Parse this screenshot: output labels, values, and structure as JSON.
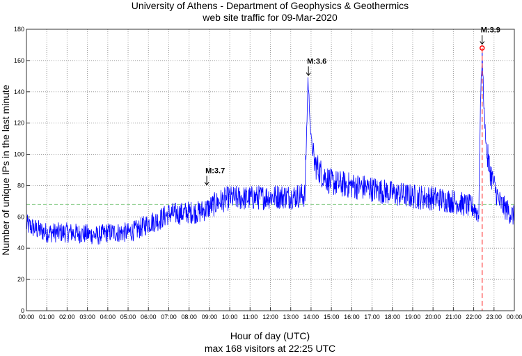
{
  "chart_data": {
    "type": "line",
    "title": "University of Athens - Department of Geophysics & Geothermics",
    "subtitle": "web site traffic for 09-Mar-2020",
    "xlabel": "Hour of day (UTC)",
    "footer": "max 168 visitors at 22:25 UTC",
    "ylabel": "Number of unique IPs in the last minute",
    "xlim": [
      0,
      24
    ],
    "ylim": [
      0,
      180
    ],
    "grid": true,
    "x_ticks": [
      "00:00",
      "01:00",
      "02:00",
      "03:00",
      "04:00",
      "05:00",
      "06:00",
      "07:00",
      "08:00",
      "09:00",
      "10:00",
      "11:00",
      "12:00",
      "13:00",
      "14:00",
      "15:00",
      "16:00",
      "17:00",
      "18:00",
      "19:00",
      "20:00",
      "21:00",
      "22:00",
      "23:00",
      "00:00"
    ],
    "y_ticks": [
      0,
      20,
      40,
      60,
      80,
      100,
      120,
      140,
      160,
      180
    ],
    "series": [
      {
        "name": "visitors",
        "color": "#0000ff",
        "x_hours": [
          0,
          0.5,
          1,
          2,
          3,
          3.5,
          4,
          5,
          5.5,
          6,
          6.5,
          7,
          7.5,
          8,
          8.5,
          9,
          9.5,
          10,
          11,
          12,
          13,
          13.7,
          13.85,
          14,
          14.15,
          14.5,
          15,
          16,
          17,
          18,
          19,
          20,
          21,
          22,
          22.25,
          22.33,
          22.42,
          22.5,
          22.65,
          22.8,
          23,
          23.25,
          23.5,
          24
        ],
        "values": [
          55,
          52,
          50,
          50,
          49,
          48,
          50,
          50,
          52,
          56,
          58,
          62,
          62,
          63,
          63,
          66,
          70,
          72,
          72,
          73,
          73,
          74,
          148,
          110,
          95,
          88,
          82,
          80,
          78,
          75,
          73,
          72,
          70,
          66,
          62,
          130,
          168,
          130,
          100,
          90,
          80,
          70,
          66,
          60
        ]
      }
    ],
    "mean_line": {
      "value": 68,
      "color": "#88cc88"
    },
    "max_line": {
      "x_hours": 22.4167,
      "value": 168,
      "color": "#ff6666"
    },
    "annotations": [
      {
        "label": "M:3.7",
        "x_hours": 8.87,
        "y": 80
      },
      {
        "label": "M:3.6",
        "x_hours": 13.87,
        "y": 150
      },
      {
        "label": "M:3.9",
        "x_hours": 22.4167,
        "y": 170
      }
    ]
  }
}
